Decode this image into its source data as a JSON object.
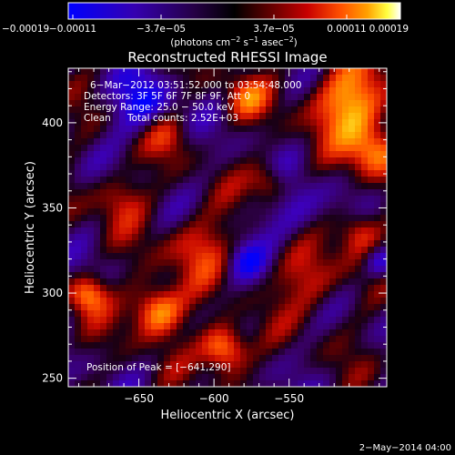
{
  "colorbar": {
    "ticks": [
      "−0.00019",
      "−0.00011",
      "−3.7e−05",
      "3.7e−05",
      "0.00011",
      "0.00019"
    ],
    "units_main": "(photons cm",
    "units_exp1": "−2",
    "units_mid": " s",
    "units_exp2": "−1",
    "units_end": " asec",
    "units_exp3": "−2",
    "units_close": ")",
    "colors": [
      "#0000ff",
      "#3a00a0",
      "#2a0060",
      "#000000",
      "#5a0000",
      "#c00000",
      "#ff4000",
      "#ffa000",
      "#ffff40",
      "#ffffff"
    ]
  },
  "plot": {
    "title": "Reconstructed RHESSI Image",
    "xlabel": "Heliocentric X (arcsec)",
    "ylabel": "Heliocentric Y (arcsec)",
    "x_ticks": [
      {
        "value": -650,
        "label": "−650"
      },
      {
        "value": -600,
        "label": "−600"
      },
      {
        "value": -550,
        "label": "−550"
      }
    ],
    "y_ticks": [
      {
        "value": 400,
        "label": "400"
      },
      {
        "value": 350,
        "label": "350"
      },
      {
        "value": 300,
        "label": "300"
      },
      {
        "value": 250,
        "label": "250"
      }
    ],
    "xlim": [
      -697,
      -485
    ],
    "ylim": [
      245,
      432
    ],
    "info": {
      "time": "6−Mar−2012 03:51:52.000 to 03:54:48.000",
      "detectors": "Detectors: 3F 5F 6F 7F 8F 9F, Att 0",
      "energy": "Energy Range: 25.0 − 50.0 keV",
      "clean": "Clean",
      "counts": "Total counts: 2.52E+03"
    },
    "peak": "Position of Peak = [−641,290]"
  },
  "footer": {
    "date": "2−May−2014 04:00"
  }
}
